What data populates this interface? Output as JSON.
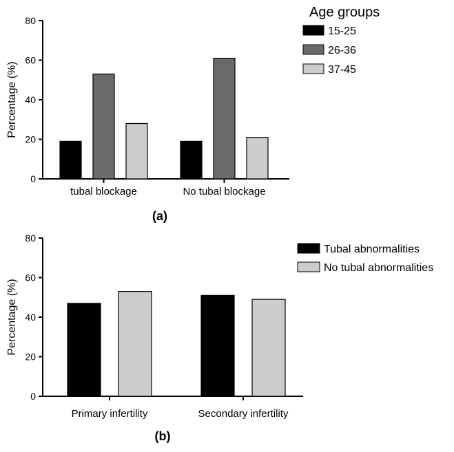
{
  "chart_data": [
    {
      "type": "bar",
      "panel_label": "(a)",
      "ylabel": "Percentage (%)",
      "ylim": [
        0,
        80
      ],
      "yticks": [
        "0",
        "20",
        "40",
        "60",
        "80"
      ],
      "categories": [
        "tubal blockage",
        "No tubal blockage"
      ],
      "legend_title": "Age groups",
      "legend_position": "top-right",
      "series": [
        {
          "name": "15-25",
          "color": "#000000",
          "values": [
            19,
            19
          ]
        },
        {
          "name": "26-36",
          "color": "#6b6b6b",
          "values": [
            53,
            61
          ]
        },
        {
          "name": "37-45",
          "color": "#cccccc",
          "values": [
            28,
            21
          ]
        }
      ]
    },
    {
      "type": "bar",
      "panel_label": "(b)",
      "ylabel": "Percentage (%)",
      "ylim": [
        0,
        80
      ],
      "yticks": [
        "0",
        "20",
        "40",
        "60",
        "80"
      ],
      "categories": [
        "Primary infertility",
        "Secondary infertility"
      ],
      "legend_position": "top-right",
      "series": [
        {
          "name": "Tubal abnormalities",
          "color": "#000000",
          "values": [
            47,
            51
          ]
        },
        {
          "name": "No tubal abnormalities",
          "color": "#cccccc",
          "values": [
            53,
            49
          ]
        }
      ]
    }
  ]
}
